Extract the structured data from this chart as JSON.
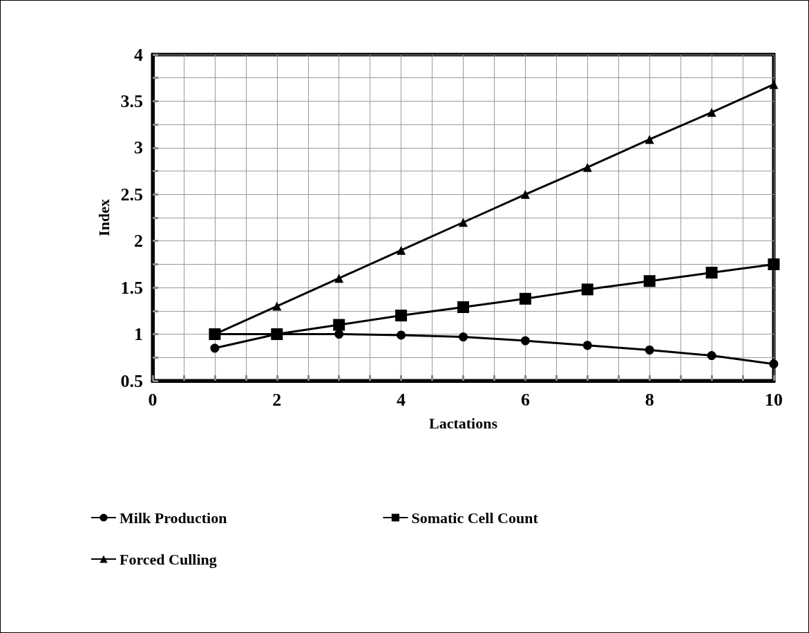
{
  "chart_data": {
    "type": "line",
    "xlabel": "Lactations",
    "ylabel": "Index",
    "x": [
      1,
      2,
      3,
      4,
      5,
      6,
      7,
      8,
      9,
      10
    ],
    "series": [
      {
        "name": "Milk Production",
        "color": "#000000",
        "marker": "circle",
        "values": [
          0.85,
          1.0,
          1.0,
          0.99,
          0.97,
          0.93,
          0.88,
          0.83,
          0.77,
          0.68
        ]
      },
      {
        "name": "Somatic Cell Count",
        "color": "#000000",
        "marker": "square",
        "values": [
          1.0,
          1.0,
          1.1,
          1.2,
          1.29,
          1.38,
          1.48,
          1.57,
          1.66,
          1.75
        ]
      },
      {
        "name": "Forced Culling",
        "color": "#000000",
        "marker": "triangle",
        "values": [
          1.0,
          1.3,
          1.6,
          1.9,
          2.2,
          2.5,
          2.79,
          3.09,
          3.38,
          3.68
        ]
      }
    ],
    "xlim": [
      0,
      10
    ],
    "xticks": [
      0,
      {
        "value": 0.5,
        "label": null
      },
      {
        "value": 1,
        "label": null
      },
      {
        "value": 1.5,
        "label": null
      },
      2,
      {
        "value": 2.5,
        "label": null
      },
      {
        "value": 3,
        "label": null
      },
      {
        "value": 3.5,
        "label": null
      },
      4,
      {
        "value": 4.5,
        "label": null
      },
      {
        "value": 5,
        "label": null
      },
      {
        "value": 5.5,
        "label": null
      },
      6,
      {
        "value": 6.5,
        "label": null
      },
      {
        "value": 7,
        "label": null
      },
      {
        "value": 7.5,
        "label": null
      },
      8,
      {
        "value": 8.5,
        "label": null
      },
      {
        "value": 9,
        "label": null
      },
      {
        "value": 9.5,
        "label": null
      },
      10
    ],
    "ylim": [
      0.5,
      4
    ],
    "yticks": [
      0.5,
      {
        "value": 0.75,
        "label": null
      },
      1,
      {
        "value": 1.25,
        "label": null
      },
      1.5,
      {
        "value": 1.75,
        "label": null
      },
      2,
      {
        "value": 2.25,
        "label": null
      },
      2.5,
      {
        "value": 2.75,
        "label": null
      },
      3,
      {
        "value": 3.25,
        "label": null
      },
      3.5,
      {
        "value": 3.75,
        "label": null
      },
      4
    ],
    "grid": true,
    "legend": "bottom",
    "line_style": "solid"
  }
}
